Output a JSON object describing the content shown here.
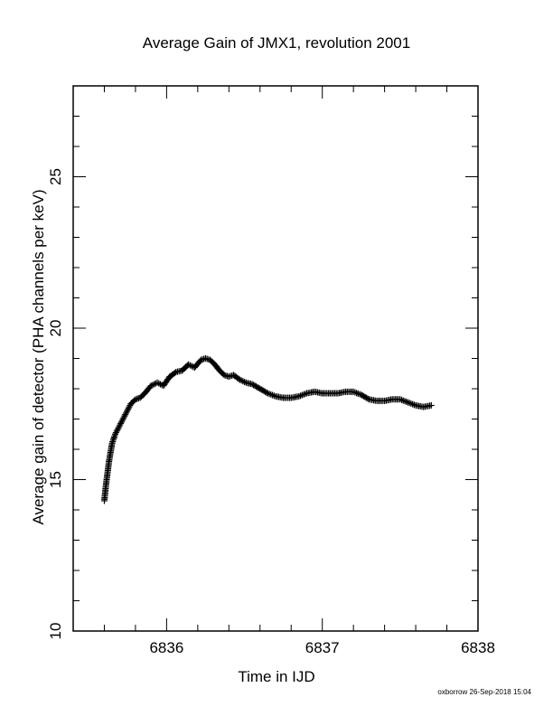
{
  "chart_data": {
    "type": "scatter",
    "title": "Average Gain of JMX1, revolution 2001",
    "xlabel": "Time in IJD",
    "ylabel": "Average gain of detector (PHA channels per keV)",
    "xlim": [
      6835.4,
      6838
    ],
    "ylim": [
      10,
      28
    ],
    "xticks": [
      6836,
      6837,
      6838
    ],
    "yticks": [
      10,
      15,
      20,
      25
    ],
    "marker": "plus",
    "grid": false,
    "series": [
      {
        "x": [
          6835.6,
          6835.61,
          6835.62,
          6835.63,
          6835.64,
          6835.65,
          6835.67,
          6835.69,
          6835.71,
          6835.73,
          6835.75,
          6835.77,
          6835.8,
          6835.83,
          6835.86,
          6835.9,
          6835.94,
          6835.98,
          6836.02,
          6836.06,
          6836.1,
          6836.14,
          6836.18,
          6836.22,
          6836.25,
          6836.28,
          6836.31,
          6836.34,
          6836.37,
          6836.4,
          6836.43,
          6836.47,
          6836.51,
          6836.55,
          6836.6,
          6836.65,
          6836.7,
          6836.75,
          6836.8,
          6836.85,
          6836.9,
          6836.95,
          6837.0,
          6837.05,
          6837.1,
          6837.15,
          6837.2,
          6837.25,
          6837.3,
          6837.35,
          6837.4,
          6837.45,
          6837.5,
          6837.55,
          6837.6,
          6837.65,
          6837.7
        ],
        "y": [
          14.3,
          14.8,
          15.2,
          15.6,
          15.9,
          16.2,
          16.5,
          16.7,
          16.9,
          17.1,
          17.3,
          17.5,
          17.65,
          17.7,
          17.85,
          18.1,
          18.2,
          18.1,
          18.4,
          18.55,
          18.6,
          18.8,
          18.7,
          18.95,
          19.0,
          18.95,
          18.8,
          18.6,
          18.45,
          18.4,
          18.45,
          18.3,
          18.2,
          18.15,
          18.0,
          17.85,
          17.75,
          17.7,
          17.7,
          17.75,
          17.85,
          17.9,
          17.85,
          17.85,
          17.85,
          17.9,
          17.9,
          17.8,
          17.65,
          17.6,
          17.6,
          17.65,
          17.65,
          17.55,
          17.45,
          17.4,
          17.45
        ]
      }
    ]
  },
  "footer": {
    "credit": "oxborrow 26-Sep-2018 15:04"
  }
}
